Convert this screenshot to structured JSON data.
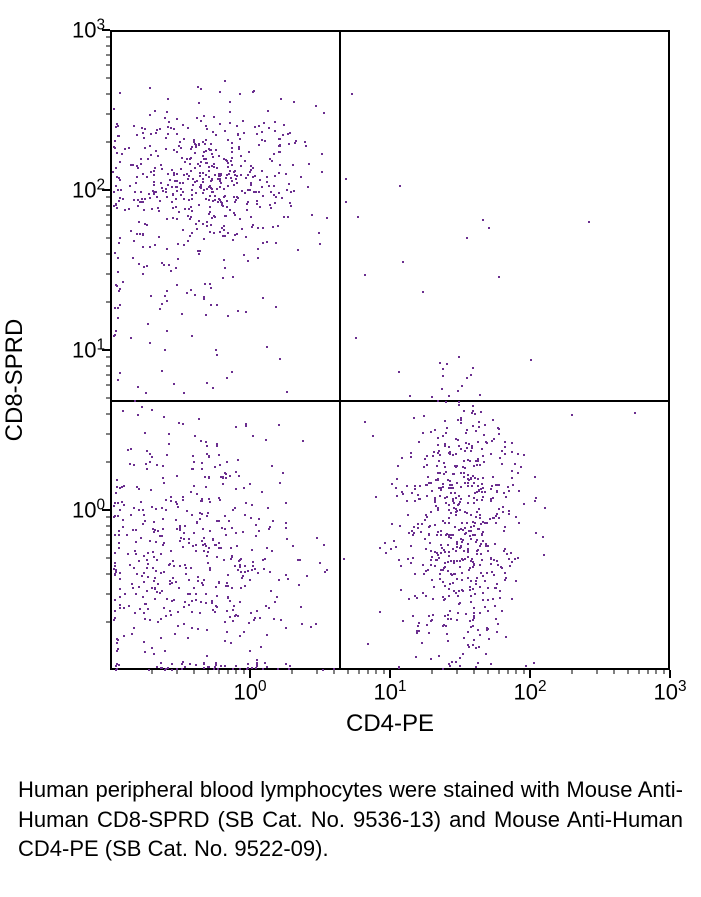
{
  "chart": {
    "type": "scatter",
    "x_label": "CD4-PE",
    "y_label": "CD8-SPRD",
    "x_scale": "log",
    "y_scale": "log",
    "x_min_exp": -1,
    "x_max_exp": 3,
    "y_min_exp": -1,
    "y_max_exp": 3,
    "x_tick_exps": [
      0,
      1,
      2,
      3
    ],
    "y_tick_exps": [
      0,
      1,
      2,
      3
    ],
    "quadrant_x_exp": 0.62,
    "quadrant_y_exp": 0.7,
    "dot_color": "#6b2e8f",
    "plot_border_color": "#000000",
    "background": "#ffffff",
    "tick_label_fontsize": 22,
    "axis_label_fontsize": 24,
    "clusters": [
      {
        "cx_exp": -0.3,
        "cy_exp": 2.1,
        "n": 460,
        "sx": 0.35,
        "sy": 0.22
      },
      {
        "cx_exp": -0.55,
        "cy_exp": 1.5,
        "n": 130,
        "sx": 0.35,
        "sy": 0.55
      },
      {
        "cx_exp": -0.4,
        "cy_exp": -0.3,
        "n": 520,
        "sx": 0.4,
        "sy": 0.45
      },
      {
        "cx_exp": 1.5,
        "cy_exp": -0.1,
        "n": 620,
        "sx": 0.22,
        "sy": 0.4
      },
      {
        "cx_exp": 0.9,
        "cy_exp": 2.0,
        "n": 14,
        "sx": 0.6,
        "sy": 0.45
      },
      {
        "cx_exp": 2.5,
        "cy_exp": 0.4,
        "n": 4,
        "sx": 0.4,
        "sy": 0.15
      },
      {
        "cx_exp": 1.3,
        "cy_exp": 0.85,
        "n": 6,
        "sx": 0.3,
        "sy": 0.2
      }
    ]
  },
  "caption": "Human peripheral blood lymphocytes were stained with Mouse Anti-Human CD8-SPRD (SB Cat. No. 9536-13) and Mouse Anti-Human CD4-PE (SB Cat. No. 9522-09)."
}
